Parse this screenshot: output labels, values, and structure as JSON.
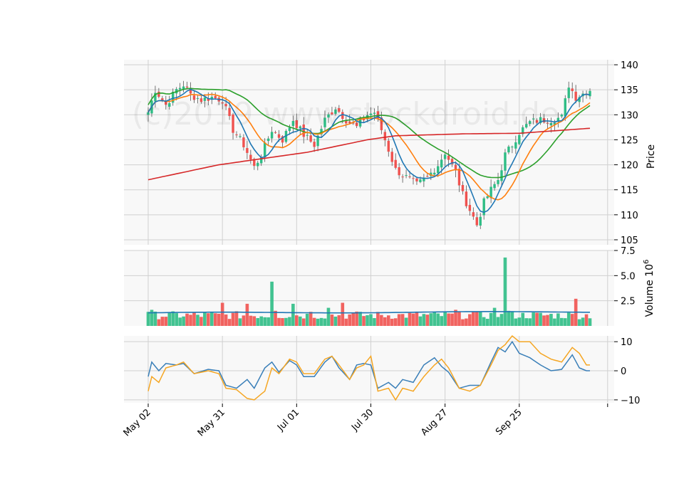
{
  "watermark": "(c)2019 www.stockdroid.de",
  "colors": {
    "up": "#2ebd85",
    "down": "#f0524f",
    "wick": "#555555",
    "ma_fast": "#1f77b4",
    "ma_mid": "#ff7f0e",
    "ma_slow": "#2ca02c",
    "ma_long": "#d62728",
    "vol_avg": "#1f77b4",
    "osc_a": "#3a7fb8",
    "osc_b": "#f5a623",
    "panel_bg": "#f8f8f8",
    "grid": "#d0d0d0"
  },
  "chart_data": [
    {
      "type": "candlestick",
      "panel": "price",
      "ylabel": "Price",
      "ylim": [
        104,
        141
      ],
      "yticks": [
        105,
        110,
        115,
        120,
        125,
        130,
        135,
        140
      ],
      "grid": true,
      "x_ticks": [
        {
          "label": "May 02",
          "index": 0
        },
        {
          "label": "May 31",
          "index": 21
        },
        {
          "label": "Jul 01",
          "index": 42
        },
        {
          "label": "Jul 30",
          "index": 63
        },
        {
          "label": "Aug 27",
          "index": 84
        },
        {
          "label": "Sep 25",
          "index": 105
        }
      ],
      "close_anchors": [
        [
          0,
          130.5
        ],
        [
          2,
          135
        ],
        [
          5,
          132
        ],
        [
          8,
          135
        ],
        [
          10,
          136
        ],
        [
          12,
          134
        ],
        [
          15,
          133
        ],
        [
          18,
          133.5
        ],
        [
          21,
          133
        ],
        [
          24,
          127
        ],
        [
          27,
          124
        ],
        [
          30,
          119.5
        ],
        [
          32,
          122
        ],
        [
          35,
          127
        ],
        [
          38,
          125
        ],
        [
          41,
          129
        ],
        [
          44,
          126
        ],
        [
          47,
          124
        ],
        [
          50,
          129
        ],
        [
          53,
          131.5
        ],
        [
          56,
          129
        ],
        [
          59,
          127.5
        ],
        [
          62,
          130
        ],
        [
          64,
          130.5
        ],
        [
          66,
          127
        ],
        [
          68,
          123
        ],
        [
          70,
          119
        ],
        [
          73,
          117.5
        ],
        [
          76,
          116
        ],
        [
          79,
          117.5
        ],
        [
          82,
          120
        ],
        [
          84,
          122.5
        ],
        [
          87,
          118.5
        ],
        [
          89,
          114
        ],
        [
          91,
          111
        ],
        [
          93,
          108
        ],
        [
          95,
          112.5
        ],
        [
          97,
          115
        ],
        [
          99,
          117
        ],
        [
          101,
          122
        ],
        [
          103,
          124
        ],
        [
          105,
          126.5
        ],
        [
          108,
          128.5
        ],
        [
          111,
          129
        ],
        [
          114,
          129
        ],
        [
          117,
          129.5
        ],
        [
          119,
          136
        ],
        [
          121,
          133.5
        ],
        [
          125,
          135
        ]
      ],
      "long_ma_anchors": [
        [
          0,
          117
        ],
        [
          20,
          120
        ],
        [
          45,
          122.5
        ],
        [
          62,
          125
        ],
        [
          70,
          125.8
        ],
        [
          90,
          126.2
        ],
        [
          105,
          126.3
        ],
        [
          125,
          127.3
        ]
      ]
    },
    {
      "type": "bar",
      "panel": "volume",
      "ylabel": "Volume  10^6",
      "ylim": [
        0,
        7.5
      ],
      "yticks": [
        2.5,
        5.0,
        7.5
      ],
      "grid": true,
      "average_level": 1.3,
      "spikes": [
        [
          1,
          1.6
        ],
        [
          21,
          2.3
        ],
        [
          28,
          2.2
        ],
        [
          35,
          4.4
        ],
        [
          36,
          1.5
        ],
        [
          41,
          2.2
        ],
        [
          46,
          1.4
        ],
        [
          51,
          1.8
        ],
        [
          55,
          2.3
        ],
        [
          60,
          1.4
        ],
        [
          87,
          1.6
        ],
        [
          92,
          1.4
        ],
        [
          98,
          1.8
        ],
        [
          101,
          6.8
        ],
        [
          102,
          1.5
        ],
        [
          121,
          2.7
        ]
      ],
      "base_volume": 0.9
    },
    {
      "type": "line",
      "panel": "oscillator",
      "ylim": [
        -11,
        12
      ],
      "yticks": [
        -10,
        0,
        10
      ],
      "grid": true,
      "series": [
        {
          "key": "osc_a",
          "anchors": [
            [
              0,
              -2
            ],
            [
              1,
              3
            ],
            [
              3,
              0
            ],
            [
              5,
              2.5
            ],
            [
              8,
              2
            ],
            [
              10,
              2.5
            ],
            [
              13,
              -1
            ],
            [
              17,
              0.5
            ],
            [
              20,
              0
            ],
            [
              22,
              -5
            ],
            [
              25,
              -6
            ],
            [
              28,
              -3
            ],
            [
              30,
              -6
            ],
            [
              33,
              1
            ],
            [
              35,
              3
            ],
            [
              37,
              -0.5
            ],
            [
              40,
              3.5
            ],
            [
              42,
              2
            ],
            [
              44,
              -2
            ],
            [
              47,
              -2
            ],
            [
              50,
              3
            ],
            [
              52,
              5
            ],
            [
              54,
              1
            ],
            [
              57,
              -3
            ],
            [
              59,
              2
            ],
            [
              61,
              2.5
            ],
            [
              63,
              2
            ],
            [
              65,
              -6
            ],
            [
              68,
              -4
            ],
            [
              70,
              -6
            ],
            [
              72,
              -3
            ],
            [
              75,
              -4
            ],
            [
              78,
              2
            ],
            [
              81,
              4.5
            ],
            [
              83,
              1.5
            ],
            [
              85,
              -0.5
            ],
            [
              88,
              -6
            ],
            [
              91,
              -5
            ],
            [
              94,
              -5
            ],
            [
              97,
              3
            ],
            [
              99,
              8
            ],
            [
              101,
              6.5
            ],
            [
              103,
              10
            ],
            [
              105,
              6
            ],
            [
              108,
              4.5
            ],
            [
              111,
              2
            ],
            [
              114,
              0
            ],
            [
              117,
              0.5
            ],
            [
              120,
              5.5
            ],
            [
              122,
              1
            ],
            [
              124,
              0
            ]
          ]
        },
        {
          "key": "osc_b",
          "anchors": [
            [
              0,
              -7
            ],
            [
              1,
              -2
            ],
            [
              3,
              -4
            ],
            [
              5,
              1
            ],
            [
              8,
              2
            ],
            [
              10,
              3
            ],
            [
              13,
              -1
            ],
            [
              17,
              0
            ],
            [
              20,
              -1
            ],
            [
              22,
              -6
            ],
            [
              25,
              -6.5
            ],
            [
              28,
              -9.5
            ],
            [
              30,
              -10
            ],
            [
              33,
              -7
            ],
            [
              35,
              1
            ],
            [
              37,
              -1
            ],
            [
              40,
              4
            ],
            [
              42,
              3
            ],
            [
              44,
              -1
            ],
            [
              47,
              -1
            ],
            [
              50,
              4
            ],
            [
              52,
              5
            ],
            [
              54,
              2
            ],
            [
              57,
              -3
            ],
            [
              59,
              1
            ],
            [
              61,
              2
            ],
            [
              63,
              5
            ],
            [
              65,
              -7
            ],
            [
              68,
              -6
            ],
            [
              70,
              -10
            ],
            [
              72,
              -6
            ],
            [
              75,
              -7
            ],
            [
              78,
              -2
            ],
            [
              81,
              2
            ],
            [
              83,
              4
            ],
            [
              85,
              1
            ],
            [
              88,
              -6
            ],
            [
              91,
              -7
            ],
            [
              94,
              -5
            ],
            [
              97,
              2
            ],
            [
              99,
              7
            ],
            [
              101,
              9
            ],
            [
              103,
              12
            ],
            [
              105,
              10
            ],
            [
              108,
              10
            ],
            [
              111,
              6
            ],
            [
              114,
              4
            ],
            [
              117,
              3
            ],
            [
              120,
              8
            ],
            [
              122,
              6
            ],
            [
              124,
              2
            ]
          ]
        }
      ]
    }
  ]
}
